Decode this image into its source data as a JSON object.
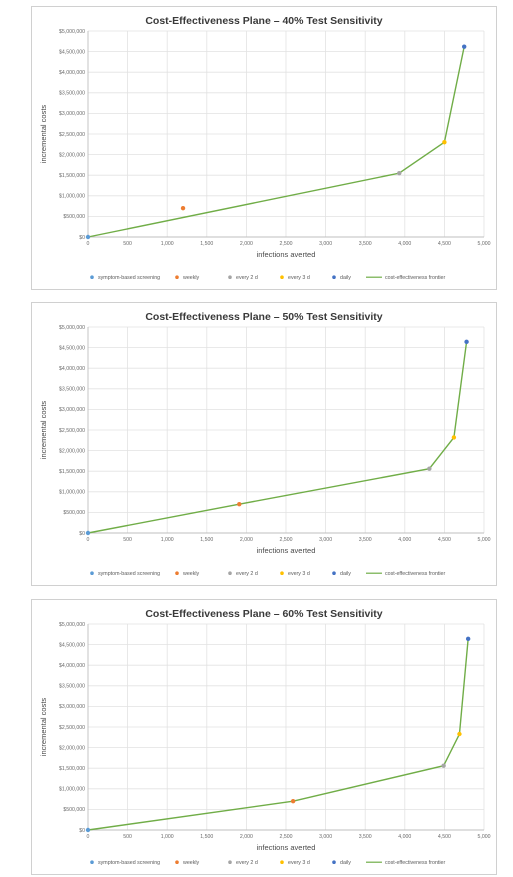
{
  "chart_data": [
    {
      "type": "scatter",
      "title": "Cost-Effectiveness Plane – 40% Test Sensitivity",
      "xlabel": "infections averted",
      "ylabel": "incremental costs",
      "xlim": [
        0,
        5000
      ],
      "ylim": [
        0,
        5000000
      ],
      "x_ticks": [
        "0",
        "500",
        "1,000",
        "1,500",
        "2,000",
        "2,500",
        "3,000",
        "3,500",
        "4,000",
        "4,500",
        "5,000"
      ],
      "y_ticks": [
        "$0",
        "$500,000",
        "$1,000,000",
        "$1,500,000",
        "$2,000,000",
        "$2,500,000",
        "$3,000,000",
        "$3,500,000",
        "$4,000,000",
        "$4,500,000",
        "$5,000,000"
      ],
      "grid": true,
      "legend_position": "bottom",
      "series": [
        {
          "name": "symptom-based screening",
          "color": "#5b9bd5",
          "points": [
            [
              0,
              0
            ]
          ]
        },
        {
          "name": "weekly",
          "color": "#ed7d31",
          "points": [
            [
              1200,
              700000
            ]
          ]
        },
        {
          "name": "every 2 d",
          "color": "#a5a5a5",
          "points": [
            [
              3930,
              1550000
            ]
          ]
        },
        {
          "name": "every 3 d",
          "color": "#ffc000",
          "points": [
            [
              4500,
              2300000
            ]
          ]
        },
        {
          "name": "daily",
          "color": "#4472c4",
          "points": [
            [
              4750,
              4620000
            ]
          ]
        }
      ],
      "frontier": {
        "name": "cost-effectiveness frontier",
        "color": "#70ad47",
        "points": [
          [
            0,
            0
          ],
          [
            3930,
            1550000
          ],
          [
            4500,
            2300000
          ],
          [
            4750,
            4620000
          ]
        ]
      }
    },
    {
      "type": "scatter",
      "title": "Cost-Effectiveness Plane – 50% Test Sensitivity",
      "xlabel": "infections averted",
      "ylabel": "incremental costs",
      "xlim": [
        0,
        5000
      ],
      "ylim": [
        0,
        5000000
      ],
      "x_ticks": [
        "0",
        "500",
        "1,000",
        "1,500",
        "2,000",
        "2,500",
        "3,000",
        "3,500",
        "4,000",
        "4,500",
        "5,000"
      ],
      "y_ticks": [
        "$0",
        "$500,000",
        "$1,000,000",
        "$1,500,000",
        "$2,000,000",
        "$2,500,000",
        "$3,000,000",
        "$3,500,000",
        "$4,000,000",
        "$4,500,000",
        "$5,000,000"
      ],
      "grid": true,
      "legend_position": "bottom",
      "series": [
        {
          "name": "symptom-based screening",
          "color": "#5b9bd5",
          "points": [
            [
              0,
              0
            ]
          ]
        },
        {
          "name": "weekly",
          "color": "#ed7d31",
          "points": [
            [
              1910,
              700000
            ]
          ]
        },
        {
          "name": "every 2 d",
          "color": "#a5a5a5",
          "points": [
            [
              4310,
              1560000
            ]
          ]
        },
        {
          "name": "every 3 d",
          "color": "#ffc000",
          "points": [
            [
              4620,
              2320000
            ]
          ]
        },
        {
          "name": "daily",
          "color": "#4472c4",
          "points": [
            [
              4780,
              4640000
            ]
          ]
        }
      ],
      "frontier": {
        "name": "cost-effectiveness frontier",
        "color": "#70ad47",
        "points": [
          [
            0,
            0
          ],
          [
            1910,
            700000
          ],
          [
            4310,
            1560000
          ],
          [
            4620,
            2320000
          ],
          [
            4780,
            4640000
          ]
        ]
      }
    },
    {
      "type": "scatter",
      "title": "Cost-Effectiveness Plane – 60% Test Sensitivity",
      "xlabel": "infections averted",
      "ylabel": "incremental costs",
      "xlim": [
        0,
        5000
      ],
      "ylim": [
        0,
        5000000
      ],
      "x_ticks": [
        "0",
        "500",
        "1,000",
        "1,500",
        "2,000",
        "2,500",
        "3,000",
        "3,500",
        "4,000",
        "4,500",
        "5,000"
      ],
      "y_ticks": [
        "$0",
        "$500,000",
        "$1,000,000",
        "$1,500,000",
        "$2,000,000",
        "$2,500,000",
        "$3,000,000",
        "$3,500,000",
        "$4,000,000",
        "$4,500,000",
        "$5,000,000"
      ],
      "grid": true,
      "legend_position": "bottom",
      "series": [
        {
          "name": "symptom-based screening",
          "color": "#5b9bd5",
          "points": [
            [
              0,
              0
            ]
          ]
        },
        {
          "name": "weekly",
          "color": "#ed7d31",
          "points": [
            [
              2590,
              700000
            ]
          ]
        },
        {
          "name": "every 2 d",
          "color": "#a5a5a5",
          "points": [
            [
              4490,
              1560000
            ]
          ]
        },
        {
          "name": "every 3 d",
          "color": "#ffc000",
          "points": [
            [
              4690,
              2330000
            ]
          ]
        },
        {
          "name": "daily",
          "color": "#4472c4",
          "points": [
            [
              4800,
              4640000
            ]
          ]
        }
      ],
      "frontier": {
        "name": "cost-effectiveness frontier",
        "color": "#70ad47",
        "points": [
          [
            0,
            0
          ],
          [
            2590,
            700000
          ],
          [
            4490,
            1560000
          ],
          [
            4690,
            2330000
          ],
          [
            4800,
            4640000
          ]
        ]
      }
    }
  ]
}
